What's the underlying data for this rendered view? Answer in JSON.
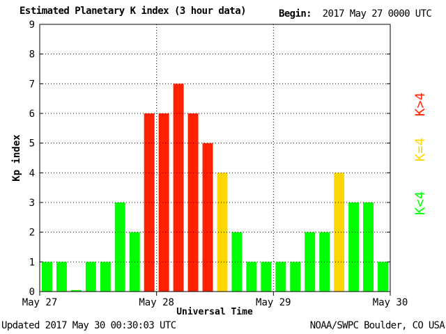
{
  "header": {
    "title": "Estimated Planetary K index (3 hour data)",
    "begin_label": "Begin:",
    "begin_value": "2017 May 27 0000 UTC"
  },
  "footer": {
    "updated": "Updated 2017 May 30 00:30:03 UTC",
    "credit": "NOAA/SWPC Boulder, CO USA"
  },
  "legend": {
    "below": "K<4",
    "equal": "K=4",
    "above": "K>4"
  },
  "colors": {
    "below": "#00ff00",
    "equal": "#ffd700",
    "above": "#ff2200"
  },
  "chart_data": {
    "type": "bar",
    "ylabel": "Kp index",
    "xlabel": "Universal Time",
    "ylim": [
      0,
      9
    ],
    "yticks": [
      0,
      1,
      2,
      3,
      4,
      5,
      6,
      7,
      8,
      9
    ],
    "grid": true,
    "xtick_labels": [
      "May 27",
      "May 28",
      "May 29",
      "May 30"
    ],
    "bars_per_day": 8,
    "values": [
      1,
      1,
      0.05,
      1,
      1,
      3,
      2,
      6,
      6,
      7,
      6,
      5,
      4,
      2,
      1,
      1,
      1,
      1,
      2,
      2,
      4,
      3,
      3,
      1
    ]
  }
}
